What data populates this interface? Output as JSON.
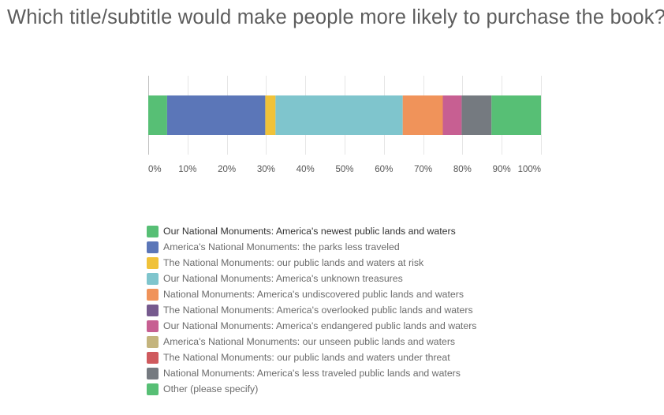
{
  "question": {
    "title": "Which title/subtitle would make people more likely to purchase the book?"
  },
  "chart_data": {
    "type": "bar",
    "orientation": "horizontal",
    "stacked": true,
    "xlim": [
      0,
      100
    ],
    "x_ticks": [
      "0%",
      "10%",
      "20%",
      "30%",
      "40%",
      "50%",
      "60%",
      "70%",
      "80%",
      "90%",
      "100%"
    ],
    "grid": true,
    "legend_position": "bottom",
    "series": [
      {
        "name": "Our National Monuments: America's newest public lands and waters",
        "value": 4.8,
        "color": "#57bf75"
      },
      {
        "name": "America's National Monuments: the parks less traveled",
        "value": 25.0,
        "color": "#5b76b8"
      },
      {
        "name": "The National Monuments: our public lands and waters at risk",
        "value": 2.6,
        "color": "#f0c239"
      },
      {
        "name": "Our National Monuments: America's unknown treasures",
        "value": 32.4,
        "color": "#7fc5cd"
      },
      {
        "name": "National Monuments: America's undiscovered public lands and waters",
        "value": 10.2,
        "color": "#f0935a"
      },
      {
        "name": "The National Monuments: America's overlooked public lands and waters",
        "value": 0,
        "color": "#765a8e"
      },
      {
        "name": "Our National Monuments: America's endangered public lands and waters",
        "value": 4.8,
        "color": "#c75f92"
      },
      {
        "name": "America's National Monuments: our unseen public lands and waters",
        "value": 0,
        "color": "#c4b47d"
      },
      {
        "name": "The National Monuments: our public lands and waters under threat",
        "value": 0,
        "color": "#cf5a5e"
      },
      {
        "name": "National Monuments: America's less traveled public lands and waters",
        "value": 7.6,
        "color": "#757a80"
      },
      {
        "name": "Other (please specify)",
        "value": 12.6,
        "color": "#57bf75"
      }
    ]
  }
}
